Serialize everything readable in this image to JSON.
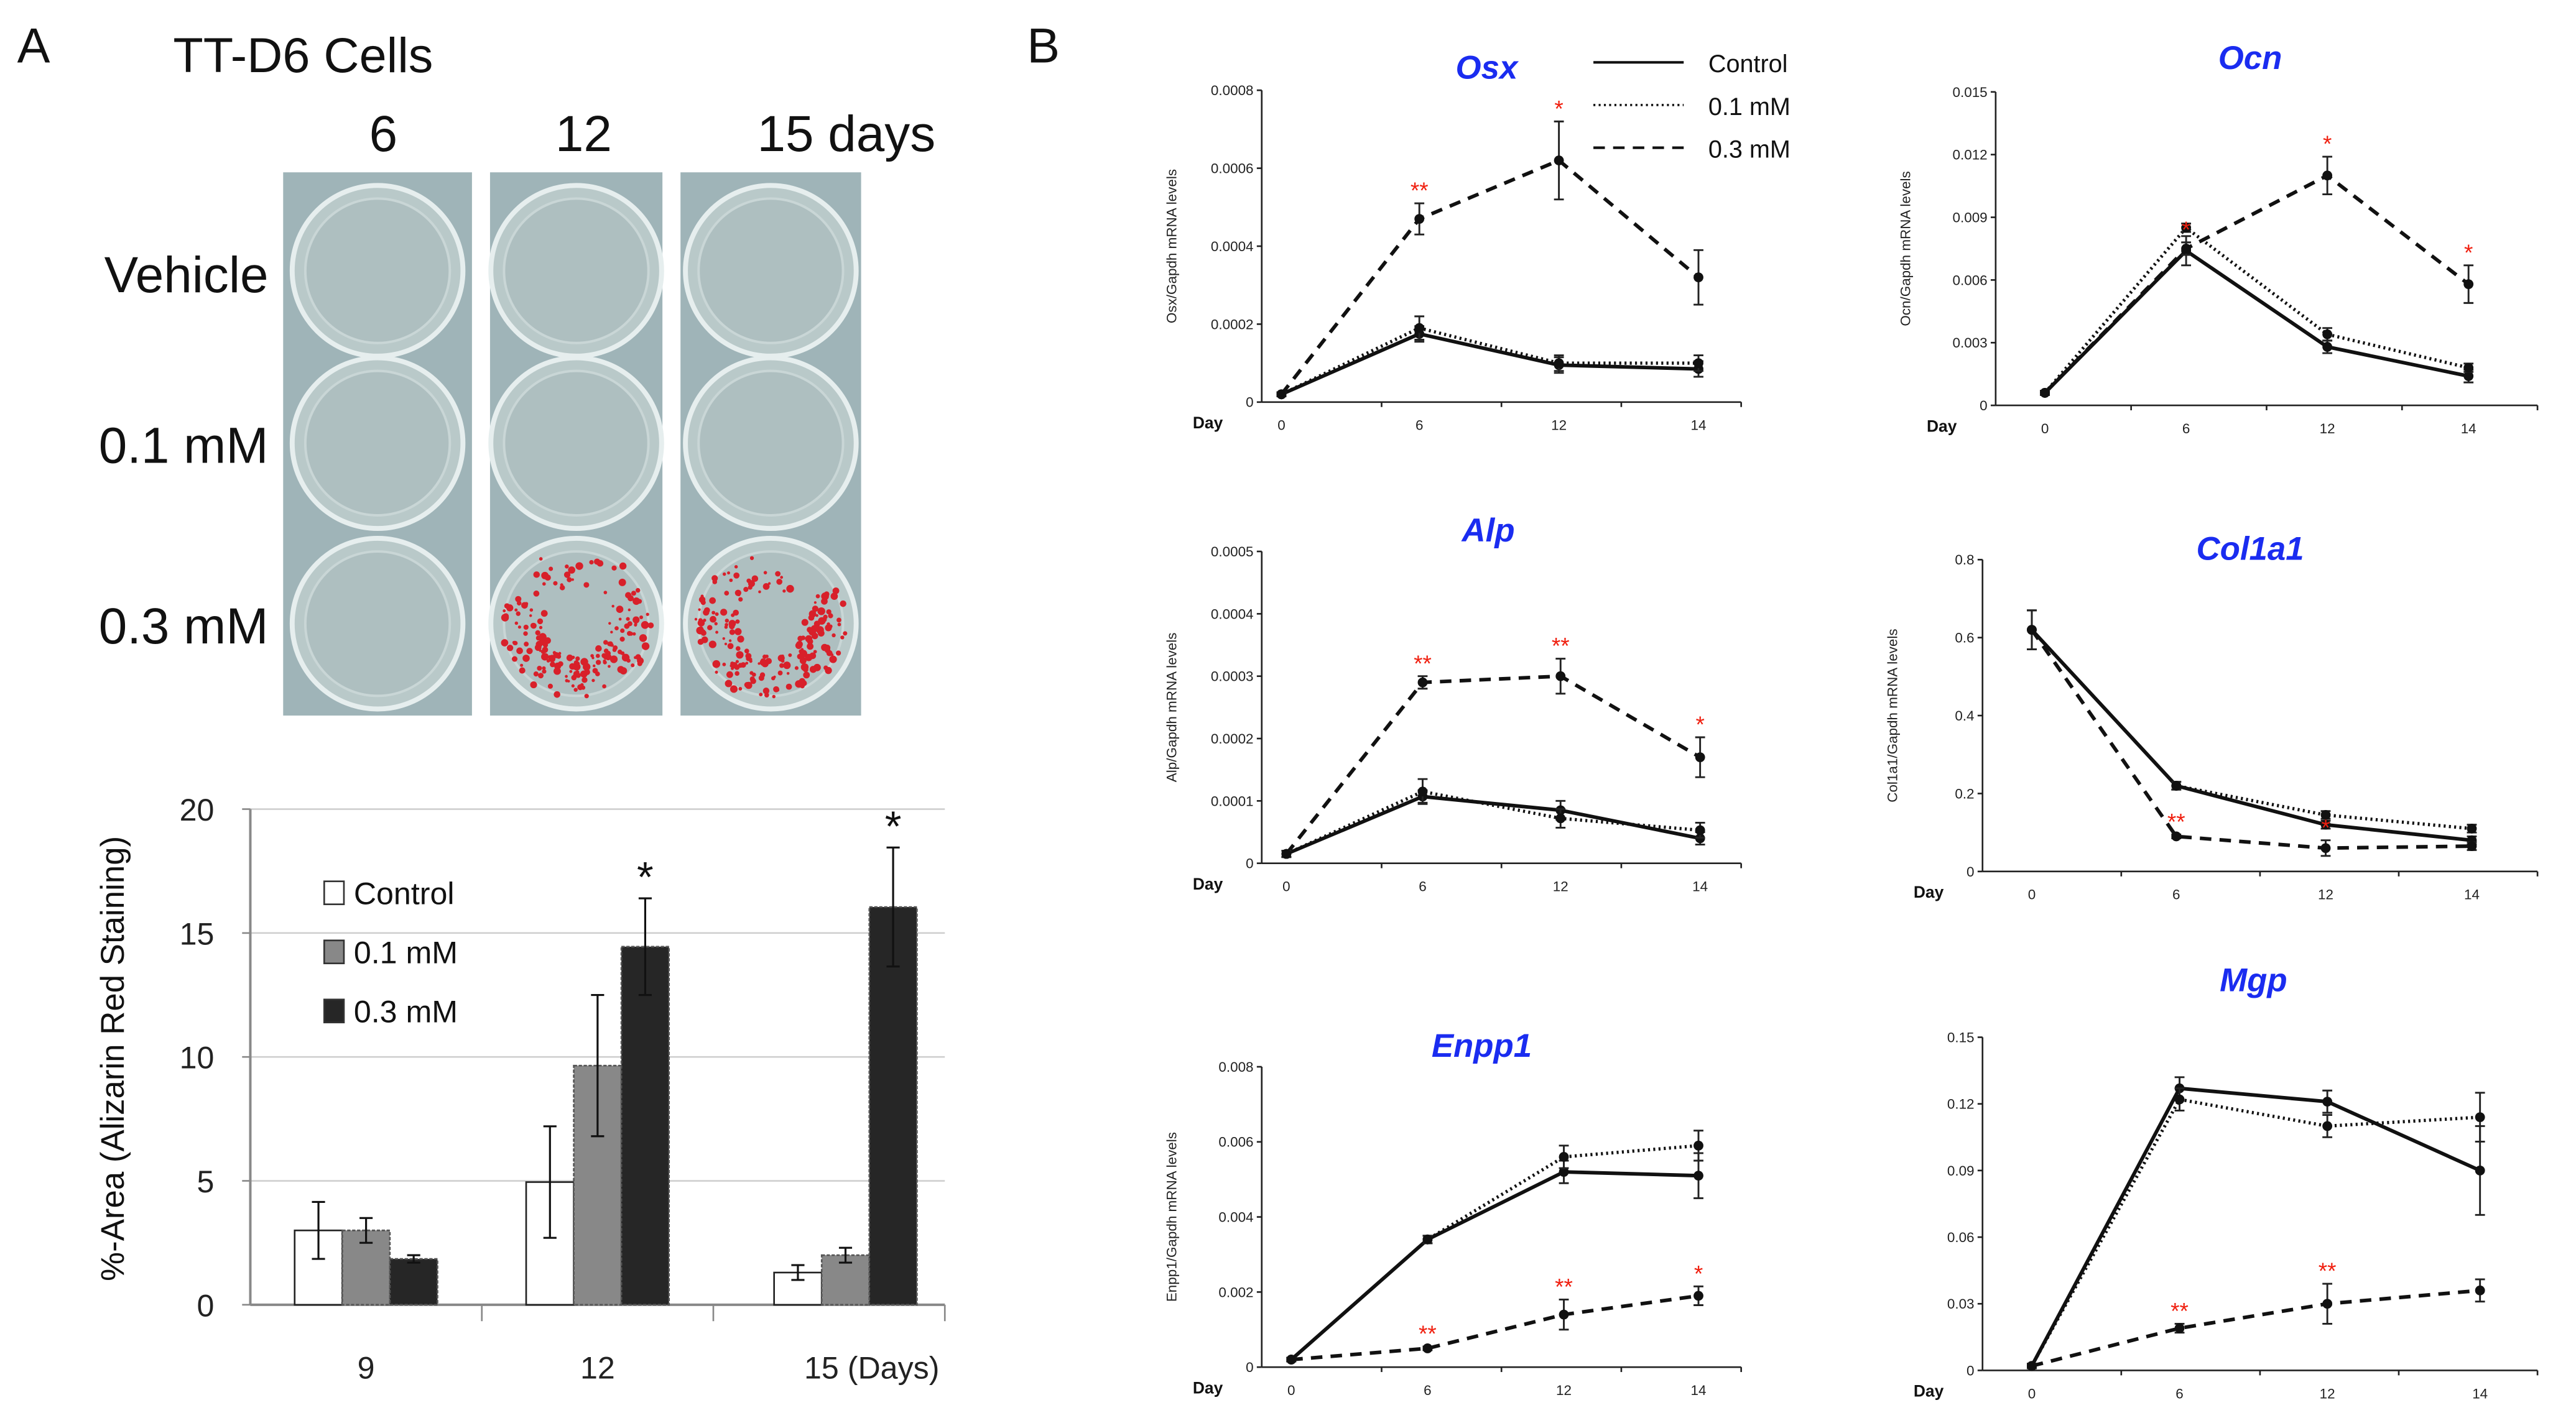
{
  "panel_a": {
    "letter": "A",
    "title": "TT-D6 Cells",
    "columns": [
      "6",
      "12",
      "15 days"
    ],
    "rows": [
      "Vehicle",
      "0.1 mM",
      "0.3 mM"
    ],
    "stained_wells": [
      {
        "row": 2,
        "col": 1
      },
      {
        "row": 2,
        "col": 2
      }
    ],
    "stain_color": "#d8202a"
  },
  "panel_b": {
    "letter": "B"
  },
  "chart_data": [
    {
      "type": "bar",
      "id": "alizarin",
      "title": "",
      "ylabel": "%-Area (Alizarin Red Staining)",
      "categories": [
        "9",
        "12",
        "15 (Days)"
      ],
      "ylim": [
        0,
        20
      ],
      "yticks": [
        "0",
        "5",
        "10",
        "15",
        "20"
      ],
      "grid": true,
      "legend_position": "top-left",
      "series": [
        {
          "name": "Control",
          "color": "#ffffff",
          "values": [
            3.0,
            4.95,
            1.3
          ],
          "err": [
            1.15,
            2.25,
            0.3
          ],
          "stars": [
            "",
            "",
            ""
          ]
        },
        {
          "name": "0.1 mM",
          "color": "#888888",
          "values": [
            3.0,
            9.65,
            2.0
          ],
          "err": [
            0.5,
            2.85,
            0.3
          ],
          "stars": [
            "",
            "",
            ""
          ]
        },
        {
          "name": "0.3 mM",
          "color": "#262626",
          "values": [
            1.85,
            14.45,
            16.05
          ],
          "err": [
            0.15,
            1.95,
            2.4
          ],
          "stars": [
            "",
            "*",
            "*"
          ]
        }
      ]
    },
    {
      "type": "line",
      "id": "osx",
      "title": "Osx",
      "ylabel": "Osx/Gapdh mRNA levels",
      "xlabel": "Day",
      "x": [
        "0",
        "6",
        "12",
        "14"
      ],
      "ylim": [
        0,
        0.0008
      ],
      "yticks": [
        "0",
        "0.0002",
        "0.0004",
        "0.0006",
        "0.0008"
      ],
      "legend": [
        "Control",
        "0.1 mM",
        "0.3 mM"
      ],
      "series": [
        {
          "name": "Control",
          "values": [
            2e-05,
            0.000175,
            9.5e-05,
            8.5e-05
          ],
          "err": [
            5e-06,
            2e-05,
            2e-05,
            2e-05
          ]
        },
        {
          "name": "0.1 mM",
          "values": [
            2e-05,
            0.00019,
            0.0001,
            0.0001
          ],
          "err": [
            5e-06,
            3e-05,
            2e-05,
            2e-05
          ]
        },
        {
          "name": "0.3 mM",
          "values": [
            2e-05,
            0.00047,
            0.00062,
            0.00032
          ],
          "err": [
            5e-06,
            4e-05,
            0.0001,
            7e-05
          ],
          "stars": [
            "",
            "**",
            "*",
            ""
          ]
        }
      ]
    },
    {
      "type": "line",
      "id": "ocn",
      "title": "Ocn",
      "ylabel": "Ocn/Gapdh mRNA levels",
      "xlabel": "Day",
      "x": [
        "0",
        "6",
        "12",
        "14"
      ],
      "ylim": [
        0,
        0.015
      ],
      "yticks": [
        "0",
        "0.003",
        "0.006",
        "0.009",
        "0.012",
        "0.015"
      ],
      "series": [
        {
          "name": "Control",
          "values": [
            0.0006,
            0.0074,
            0.0028,
            0.0014
          ],
          "err": [
            0.0001,
            0.0007,
            0.0003,
            0.0003
          ]
        },
        {
          "name": "0.1 mM",
          "values": [
            0.0006,
            0.0085,
            0.0034,
            0.0018
          ],
          "err": [
            0.0001,
            0.0002,
            0.0003,
            0.0002
          ]
        },
        {
          "name": "0.3 mM",
          "values": [
            0.0006,
            0.0075,
            0.011,
            0.0058
          ],
          "err": [
            0.0001,
            0.0003,
            0.0009,
            0.0009
          ],
          "stars": [
            "",
            "*",
            "*",
            "*"
          ]
        }
      ]
    },
    {
      "type": "line",
      "id": "alp",
      "title": "Alp",
      "ylabel": "Alp/Gapdh mRNA levels",
      "xlabel": "Day",
      "x": [
        "0",
        "6",
        "12",
        "14"
      ],
      "ylim": [
        0,
        0.0005
      ],
      "yticks": [
        "0",
        "0.0001",
        "0.0002",
        "0.0003",
        "0.0004",
        "0.0005"
      ],
      "series": [
        {
          "name": "Control",
          "values": [
            1.5e-05,
            0.000107,
            8.5e-05,
            4e-05
          ],
          "err": [
            5e-06,
            1e-05,
            1.5e-05,
            1e-05
          ]
        },
        {
          "name": "0.1 mM",
          "values": [
            1.5e-05,
            0.000115,
            7.2e-05,
            5.3e-05
          ],
          "err": [
            5e-06,
            2e-05,
            1.5e-05,
            1.2e-05
          ]
        },
        {
          "name": "0.3 mM",
          "values": [
            1.5e-05,
            0.00029,
            0.0003,
            0.00017
          ],
          "err": [
            5e-06,
            1e-05,
            2.8e-05,
            3.2e-05
          ],
          "stars": [
            "",
            "**",
            "**",
            "*"
          ]
        }
      ]
    },
    {
      "type": "line",
      "id": "col1a1",
      "title": "Col1a1",
      "ylabel": "Col1a1/Gapdh mRNA levels",
      "xlabel": "Day",
      "x": [
        "0",
        "6",
        "12",
        "14"
      ],
      "ylim": [
        0,
        0.8
      ],
      "yticks": [
        "0",
        "0.2",
        "0.4",
        "0.6",
        "0.8"
      ],
      "series": [
        {
          "name": "Control",
          "values": [
            0.62,
            0.22,
            0.12,
            0.08
          ],
          "err": [
            0.05,
            0.01,
            0.01,
            0.01
          ]
        },
        {
          "name": "0.1 mM",
          "values": [
            0.62,
            0.22,
            0.145,
            0.11
          ],
          "err": [
            0.05,
            0.01,
            0.01,
            0.01
          ]
        },
        {
          "name": "0.3 mM",
          "values": [
            0.62,
            0.09,
            0.06,
            0.065
          ],
          "err": [
            0.05,
            0.005,
            0.02,
            0.01
          ],
          "stars": [
            "",
            "**",
            "*",
            ""
          ]
        }
      ]
    },
    {
      "type": "line",
      "id": "enpp1",
      "title": "Enpp1",
      "ylabel": "Enpp1/Gapdh mRNA levels",
      "xlabel": "Day",
      "x": [
        "0",
        "6",
        "12",
        "14"
      ],
      "ylim": [
        0,
        0.008
      ],
      "yticks": [
        "0",
        "0.002",
        "0.004",
        "0.006",
        "0.008"
      ],
      "series": [
        {
          "name": "Control",
          "values": [
            0.0002,
            0.0034,
            0.0052,
            0.0051
          ],
          "err": [
            5e-05,
            0.0001,
            0.0003,
            0.0006
          ]
        },
        {
          "name": "0.1 mM",
          "values": [
            0.0002,
            0.0034,
            0.0056,
            0.0059
          ],
          "err": [
            5e-05,
            0.0001,
            0.0003,
            0.0004
          ]
        },
        {
          "name": "0.3 mM",
          "values": [
            0.0002,
            0.0005,
            0.0014,
            0.0019
          ],
          "err": [
            5e-05,
            5e-05,
            0.0004,
            0.00025
          ],
          "stars": [
            "",
            "**",
            "**",
            "*"
          ]
        }
      ]
    },
    {
      "type": "line",
      "id": "mgp",
      "title": "Mgp",
      "ylabel": "",
      "xlabel": "Day",
      "x": [
        "0",
        "6",
        "12",
        "14"
      ],
      "ylim": [
        0,
        0.15
      ],
      "yticks": [
        "0",
        "0.03",
        "0.06",
        "0.09",
        "0.12",
        "0.15"
      ],
      "series": [
        {
          "name": "Control",
          "values": [
            0.002,
            0.127,
            0.121,
            0.09
          ],
          "err": [
            0.001,
            0.005,
            0.005,
            0.02
          ]
        },
        {
          "name": "0.1 mM",
          "values": [
            0.002,
            0.122,
            0.11,
            0.114
          ],
          "err": [
            0.001,
            0.005,
            0.005,
            0.011
          ]
        },
        {
          "name": "0.3 mM",
          "values": [
            0.002,
            0.019,
            0.03,
            0.036
          ],
          "err": [
            0.001,
            0.002,
            0.009,
            0.005
          ],
          "stars": [
            "",
            "**",
            "**",
            ""
          ]
        }
      ]
    }
  ]
}
